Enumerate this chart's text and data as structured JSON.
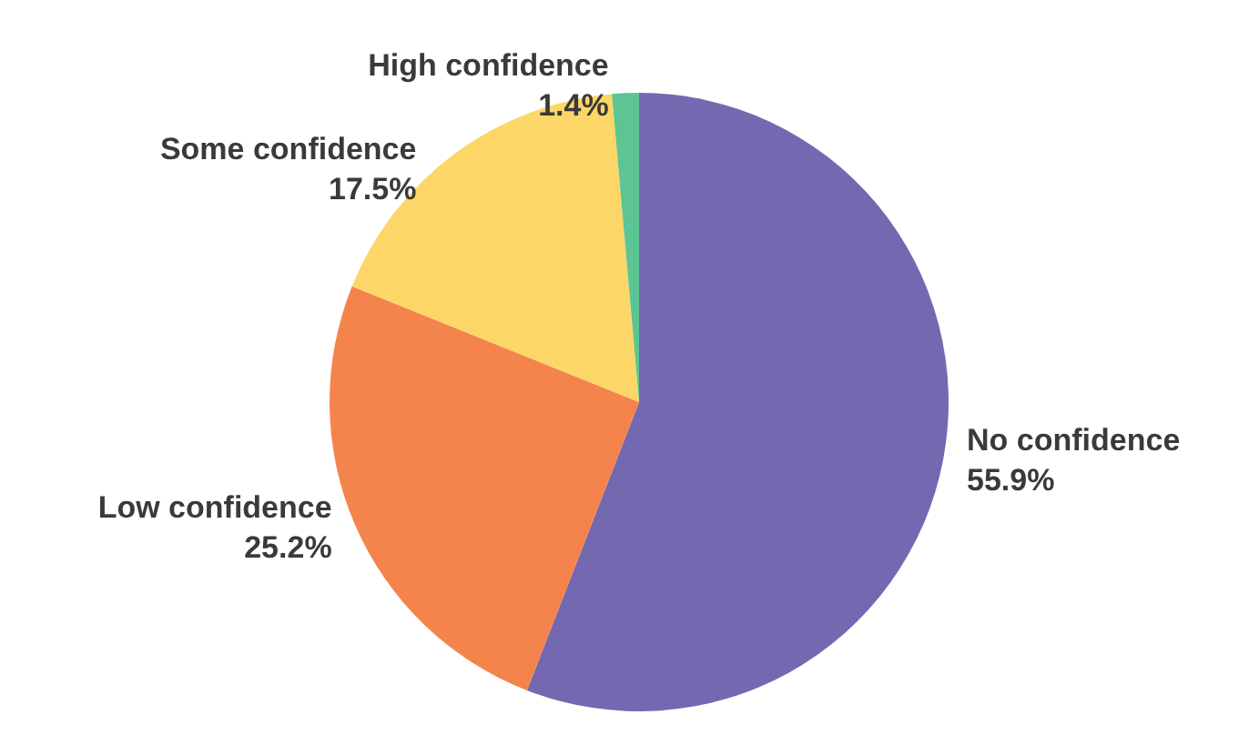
{
  "chart_data": {
    "type": "pie",
    "categories": [
      "No confidence",
      "Low confidence",
      "Some confidence",
      "High confidence"
    ],
    "values": [
      55.9,
      25.2,
      17.5,
      1.4
    ],
    "colors": [
      "#7469b0",
      "#f4844c",
      "#fcd767",
      "#5cc593"
    ],
    "value_labels": [
      "55.9%",
      "25.2%",
      "17.5%",
      "1.4%"
    ],
    "legend": false
  }
}
